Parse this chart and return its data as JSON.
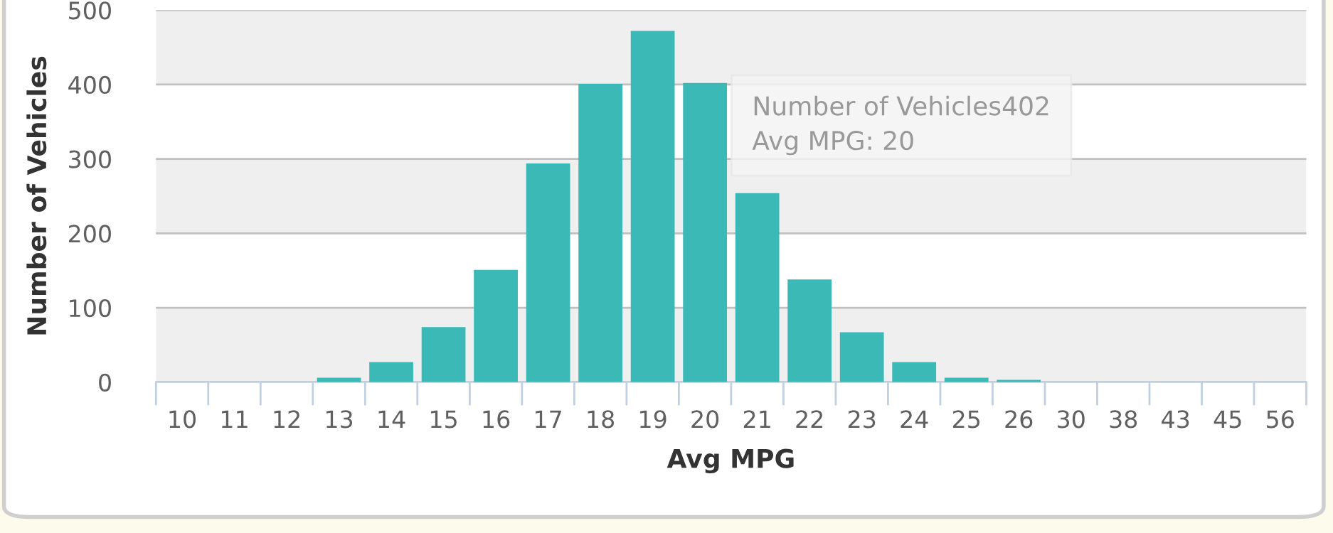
{
  "chart_data": {
    "type": "bar",
    "xlabel": "Avg MPG",
    "ylabel": "Number of Vehicles",
    "categories": [
      "10",
      "11",
      "12",
      "13",
      "14",
      "15",
      "16",
      "17",
      "18",
      "19",
      "20",
      "21",
      "22",
      "23",
      "24",
      "25",
      "26",
      "30",
      "38",
      "43",
      "45",
      "56"
    ],
    "values": [
      0,
      0,
      0,
      6,
      27,
      74,
      151,
      294,
      401,
      472,
      402,
      254,
      138,
      67,
      27,
      6,
      3,
      0,
      0,
      0,
      0,
      0
    ],
    "color": "#3ab9b6",
    "ylim": [
      0,
      500
    ],
    "yticks": [
      0,
      100,
      200,
      300,
      400,
      500
    ],
    "grid": "y",
    "legend": false,
    "bands": [
      {
        "axis": "y",
        "from": 0,
        "to": 100,
        "color": "#efefef"
      },
      {
        "axis": "y",
        "from": 200,
        "to": 300,
        "color": "#efefef"
      },
      {
        "axis": "y",
        "from": 400,
        "to": 500,
        "color": "#efefef"
      }
    ],
    "annotations": [
      "Number of Vehicles402",
      "Avg MPG: 20"
    ]
  }
}
